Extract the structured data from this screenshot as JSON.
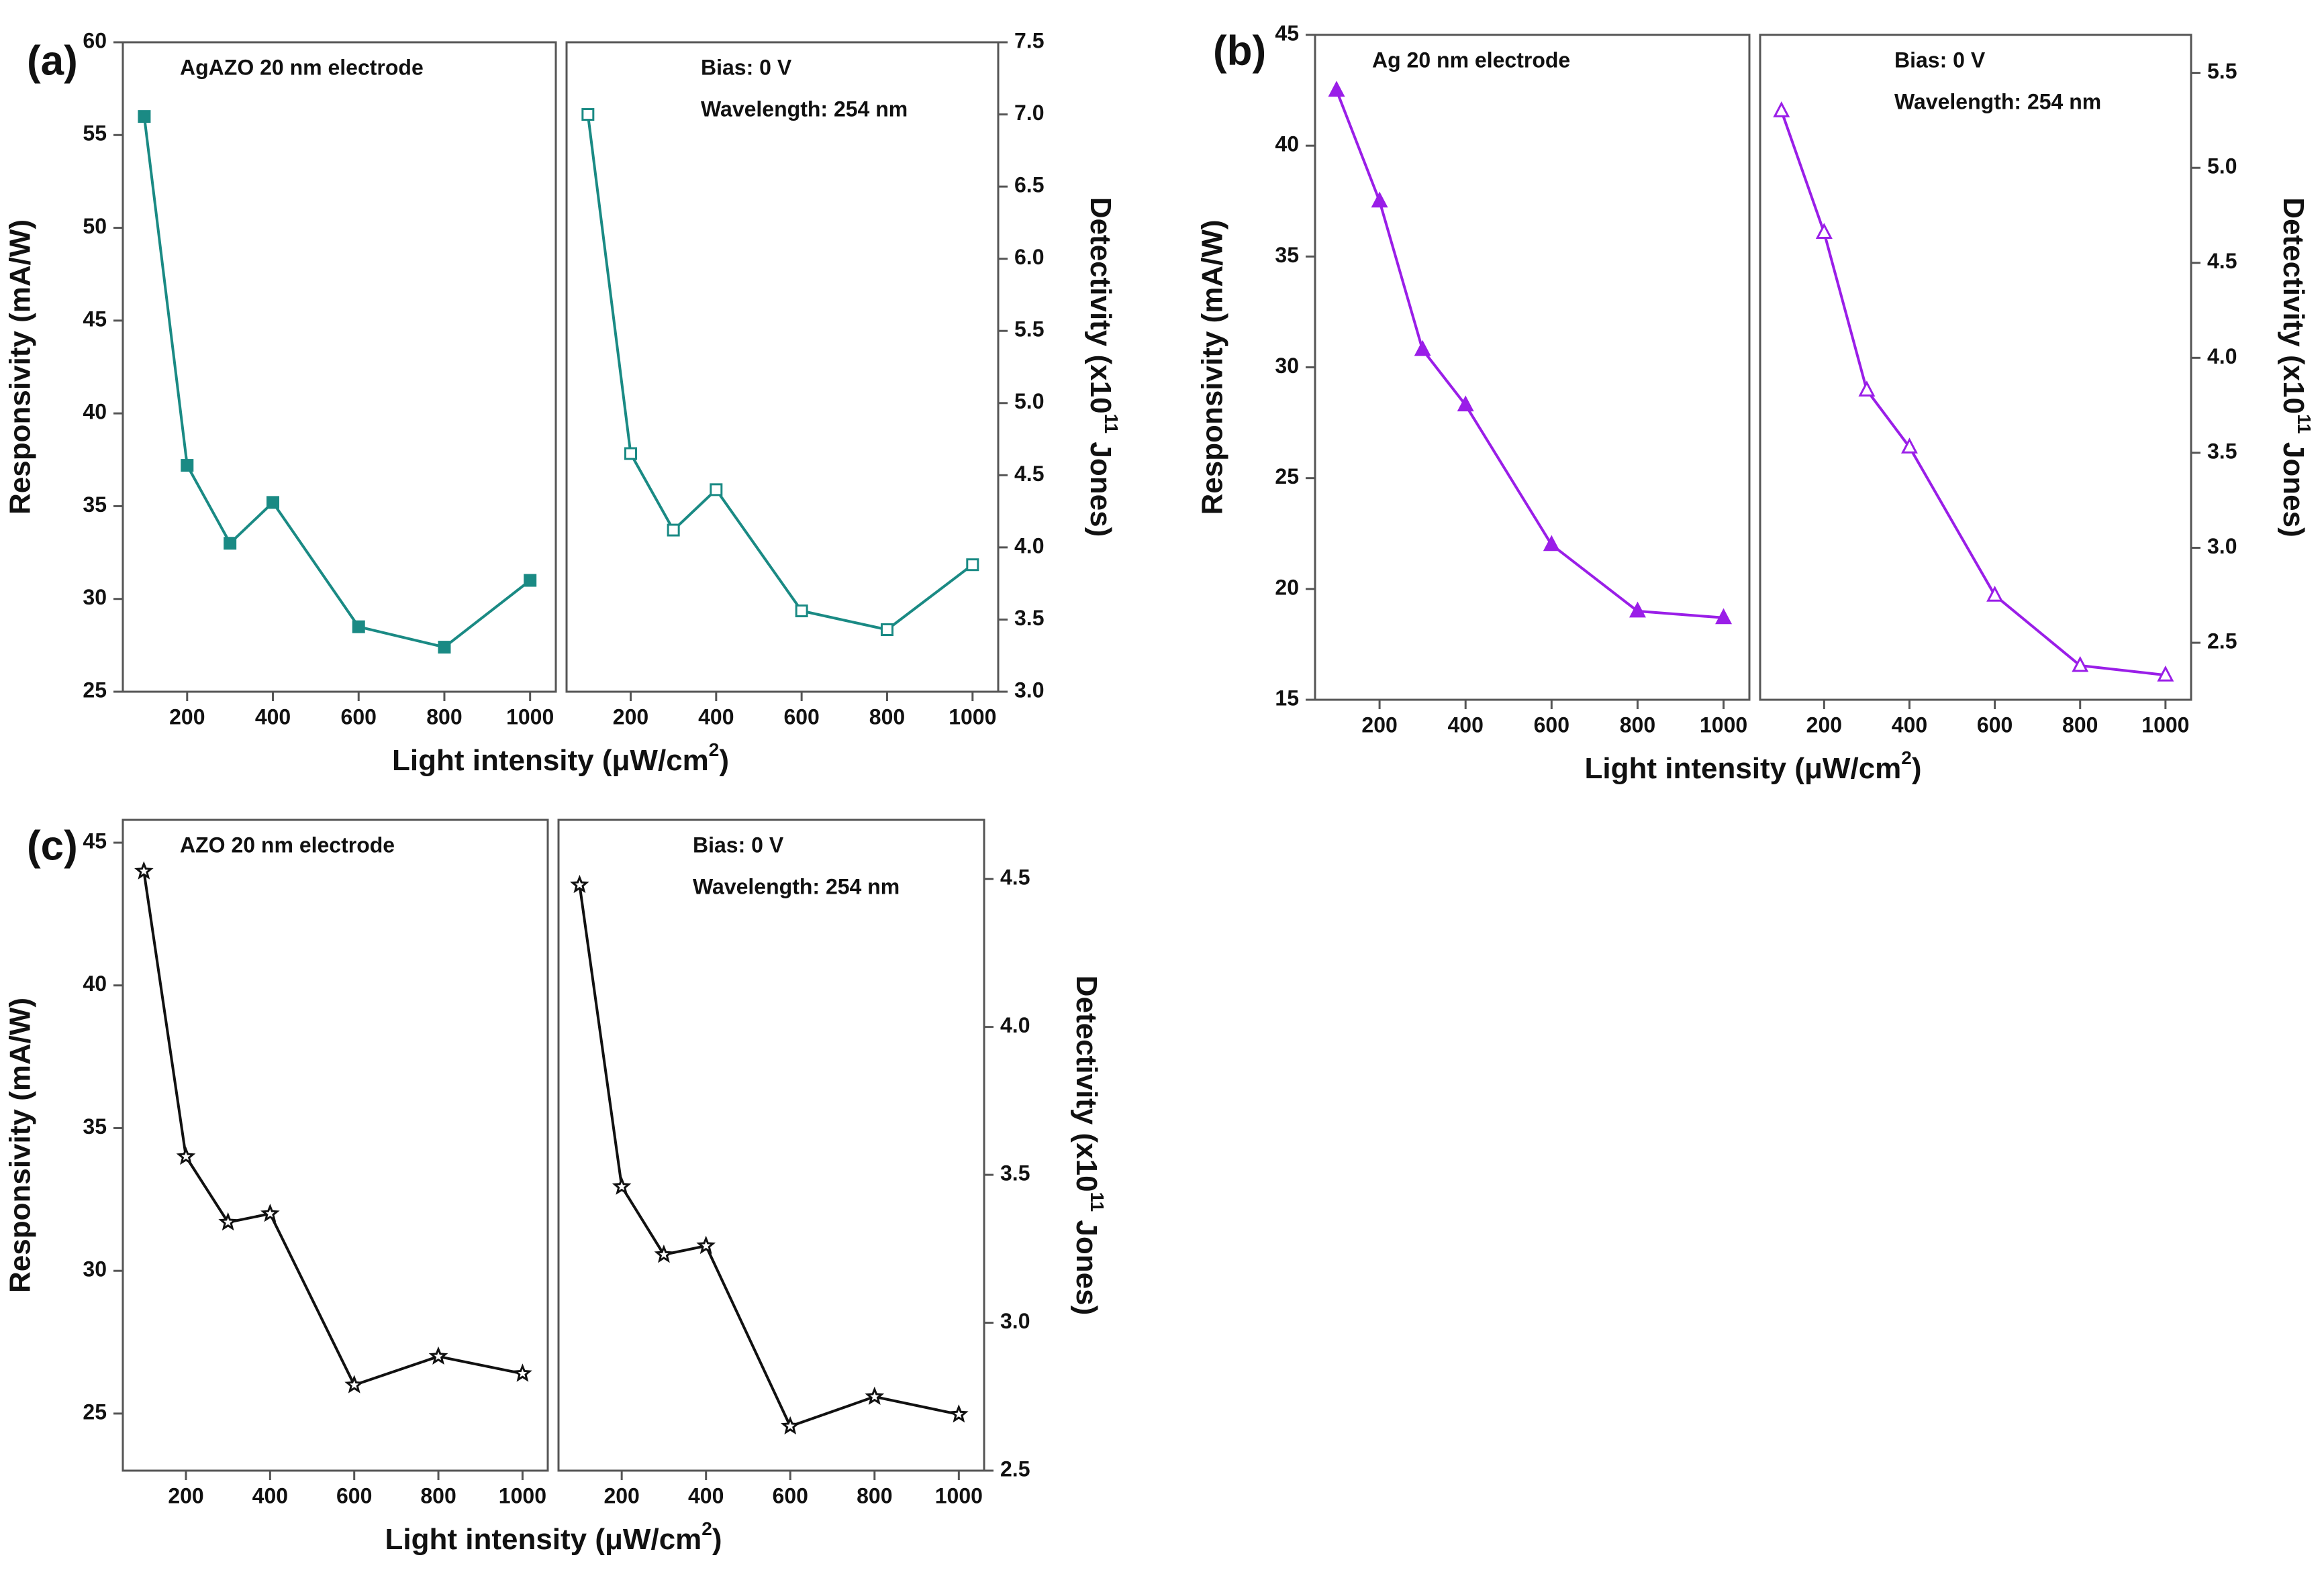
{
  "figure_title": "",
  "chart_data": [
    {
      "id": "a",
      "type": "line",
      "panel_label": "(a)",
      "annotation_left": "AgAZO 20 nm electrode",
      "annotation_bias": "Bias: 0 V",
      "annotation_wavelength": "Wavelength: 254 nm",
      "xlabel": "Light intensity (μW/cm²)",
      "xlabel_main": "Light intensity (μW/cm",
      "xlabel_sup": "2",
      "xlabel_end": ")",
      "ylabel": "Responsivity (mA/W)",
      "y2label": "Detectivity (x10¹¹ Jones)",
      "y2label_main": "Detectivity (x10",
      "y2label_sup": "11",
      "y2label_end": " Jones)",
      "xlim": [
        50,
        1060
      ],
      "xticks": [
        200,
        400,
        600,
        800,
        1000
      ],
      "xtick_labels": [
        "200",
        "400",
        "600",
        "800",
        "1000"
      ],
      "ylim": [
        25,
        60
      ],
      "yticks": [
        25,
        30,
        35,
        40,
        45,
        50,
        55,
        60
      ],
      "ytick_labels": [
        "25",
        "30",
        "35",
        "40",
        "45",
        "50",
        "55",
        "60"
      ],
      "y2lim": [
        3.0,
        7.5
      ],
      "y2ticks": [
        3.0,
        3.5,
        4.0,
        4.5,
        5.0,
        5.5,
        6.0,
        6.5,
        7.0,
        7.5
      ],
      "y2tick_labels": [
        "3.0",
        "3.5",
        "4.0",
        "4.5",
        "5.0",
        "5.5",
        "6.0",
        "6.5",
        "7.0",
        "7.5"
      ],
      "color": "#1a8a84",
      "legend_color": "#1a1acc",
      "marker": "square",
      "series": [
        {
          "name": "Responsivity",
          "x": [
            100,
            200,
            300,
            400,
            600,
            800,
            1000
          ],
          "values": [
            56.0,
            37.2,
            33.0,
            35.2,
            28.5,
            27.4,
            31.0
          ]
        },
        {
          "name": "Detectivity",
          "x": [
            100,
            200,
            300,
            400,
            600,
            800,
            1000
          ],
          "values": [
            7.0,
            4.65,
            4.12,
            4.4,
            3.56,
            3.43,
            3.88
          ]
        }
      ]
    },
    {
      "id": "b",
      "type": "line",
      "panel_label": "(b)",
      "annotation_left": "Ag 20 nm electrode",
      "annotation_bias": "Bias: 0 V",
      "annotation_wavelength": "Wavelength: 254 nm",
      "xlabel": "Light intensity (μW/cm²)",
      "xlabel_main": "Light intensity (μW/cm",
      "xlabel_sup": "2",
      "xlabel_end": ")",
      "ylabel": "Responsivity (mA/W)",
      "y2label": "Detectivity (x10¹¹ Jones)",
      "y2label_main": "Detectivity (x10",
      "y2label_sup": "11",
      "y2label_end": " Jones)",
      "xlim": [
        50,
        1060
      ],
      "xticks": [
        200,
        400,
        600,
        800,
        1000
      ],
      "xtick_labels": [
        "200",
        "400",
        "600",
        "800",
        "1000"
      ],
      "ylim": [
        15,
        45
      ],
      "yticks": [
        15,
        20,
        25,
        30,
        35,
        40,
        45
      ],
      "ytick_labels": [
        "15",
        "20",
        "25",
        "30",
        "35",
        "40",
        "45"
      ],
      "y2lim": [
        2.2,
        5.7
      ],
      "y2ticks": [
        2.5,
        3.0,
        3.5,
        4.0,
        4.5,
        5.0,
        5.5
      ],
      "y2tick_labels": [
        "2.5",
        "3.0",
        "3.5",
        "4.0",
        "4.5",
        "5.0",
        "5.5"
      ],
      "color": "#9a1ee8",
      "legend_color": "#1a1acc",
      "marker": "triangle",
      "series": [
        {
          "name": "Responsivity",
          "x": [
            100,
            200,
            300,
            400,
            600,
            800,
            1000
          ],
          "values": [
            42.5,
            37.5,
            30.8,
            28.3,
            22.0,
            19.0,
            18.7
          ]
        },
        {
          "name": "Detectivity",
          "x": [
            100,
            200,
            300,
            400,
            600,
            800,
            1000
          ],
          "values": [
            5.3,
            4.66,
            3.83,
            3.53,
            2.75,
            2.38,
            2.33
          ]
        }
      ]
    },
    {
      "id": "c",
      "type": "line",
      "panel_label": "(c)",
      "annotation_left": "AZO 20 nm electrode",
      "annotation_bias": "Bias: 0 V",
      "annotation_wavelength": "Wavelength: 254 nm",
      "xlabel": "Light intensity (μW/cm²)",
      "xlabel_main": "Light intensity (μW/cm",
      "xlabel_sup": "2",
      "xlabel_end": ")",
      "ylabel": "Responsivity (mA/W)",
      "y2label": "Detectivity (x10¹¹ Jones)",
      "y2label_main": "Detectivity (x10",
      "y2label_sup": "11",
      "y2label_end": " Jones)",
      "xlim": [
        50,
        1060
      ],
      "xticks": [
        200,
        400,
        600,
        800,
        1000
      ],
      "xtick_labels": [
        "200",
        "400",
        "600",
        "800",
        "1000"
      ],
      "ylim": [
        23.0,
        45.8
      ],
      "yticks": [
        25,
        30,
        35,
        40,
        45
      ],
      "ytick_labels": [
        "25",
        "30",
        "35",
        "40",
        "45"
      ],
      "y2lim": [
        2.5,
        4.7
      ],
      "y2ticks": [
        2.5,
        3.0,
        3.5,
        4.0,
        4.5
      ],
      "y2tick_labels": [
        "2.5",
        "3.0",
        "3.5",
        "4.0",
        "4.5"
      ],
      "color": "#111111",
      "legend_color": "#1a1acc",
      "marker": "star",
      "series": [
        {
          "name": "Responsivity",
          "x": [
            100,
            200,
            300,
            400,
            600,
            800,
            1000
          ],
          "values": [
            44.0,
            34.0,
            31.7,
            32.0,
            26.0,
            27.0,
            26.4
          ]
        },
        {
          "name": "Detectivity",
          "x": [
            100,
            200,
            300,
            400,
            600,
            800,
            1000
          ],
          "values": [
            4.48,
            3.46,
            3.23,
            3.26,
            2.65,
            2.75,
            2.69
          ]
        }
      ]
    }
  ]
}
